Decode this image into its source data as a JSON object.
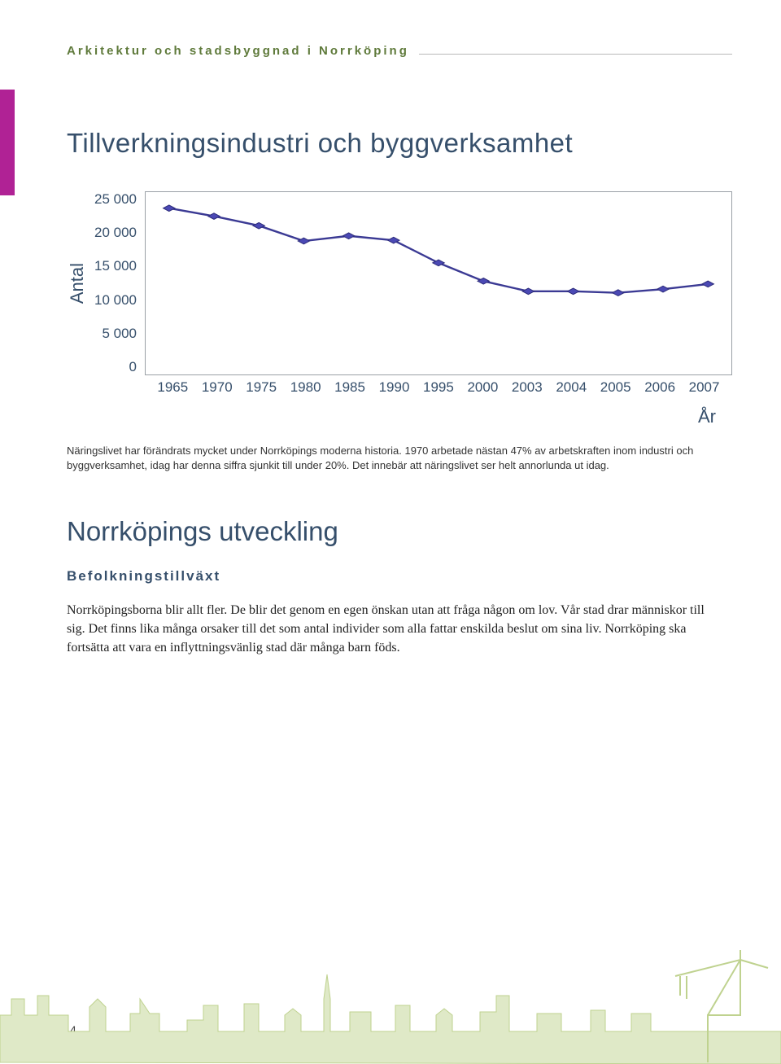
{
  "header": {
    "title": "Arkitektur och stadsbyggnad i Norrköping"
  },
  "chart": {
    "type": "line",
    "title": "Tillverkningsindustri och byggverksamhet",
    "y_axis_label": "Antal",
    "x_axis_label": "År",
    "y_ticks": [
      "25 000",
      "20 000",
      "15 000",
      "10 000",
      "5 000",
      "0"
    ],
    "ylim": [
      0,
      25000
    ],
    "x_labels": [
      "1965",
      "1970",
      "1975",
      "1980",
      "1985",
      "1990",
      "1995",
      "2000",
      "2003",
      "2004",
      "2005",
      "2006",
      "2007"
    ],
    "values": [
      22800,
      21700,
      20400,
      18300,
      19000,
      18400,
      15300,
      12800,
      11400,
      11400,
      11200,
      11700,
      12400
    ],
    "line_color": "#3b3a94",
    "line_width": 2.4,
    "marker_style": "diamond",
    "marker_size": 7,
    "marker_fill": "#4b49b4",
    "marker_stroke": "#2d2c7a",
    "background_color": "#ffffff",
    "border_color": "#9aa0a6",
    "tick_font_color": "#364f6b",
    "title_font_size": 33,
    "caption": "Näringslivet har förändrats mycket under Norrköpings moderna historia. 1970 arbetade nästan 47% av arbetskraften inom industri och byggverksamhet, idag har denna siffra sjunkit till under 20%. Det innebär att näringslivet ser helt annorlunda ut idag."
  },
  "section": {
    "title": "Norrköpings utveckling",
    "subheading": "Befolkningstillväxt",
    "body": "Norrköpingsborna blir allt fler. De blir det genom en egen önskan utan att fråga någon om lov. Vår stad drar människor till sig. Det finns lika många orsaker till det som antal individer som alla fattar enskilda beslut om sina liv. Norrköping ska fortsätta att vara en inflyttningsvänlig stad där många barn föds."
  },
  "footer": {
    "page_number": "4"
  },
  "decor": {
    "side_tab_color": "#b02295",
    "skyline_fill": "#dfe9c7",
    "skyline_stroke": "#bfd28f"
  }
}
